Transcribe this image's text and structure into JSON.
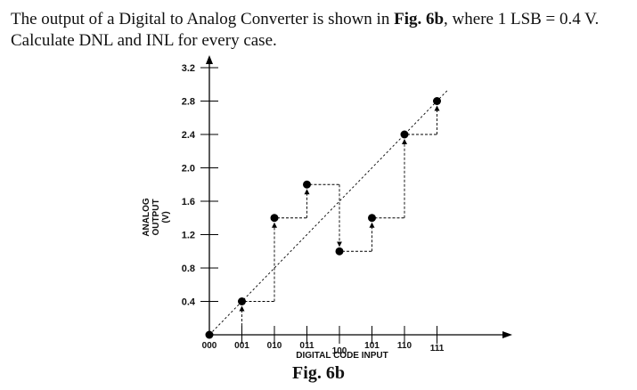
{
  "problem": {
    "part1": "The output of a Digital  to Analog Converter is shown in ",
    "figref": "Fig. 6b",
    "part2": ", where  1 LSB  = 0.4 V. Calculate  DNL and INL for every  case."
  },
  "caption": "Fig. 6b",
  "chart_data": {
    "type": "scatter",
    "title": "",
    "xlabel": "DIGITAL CODE INPUT",
    "ylabel": "ANALOG OUTPUT (V)",
    "ylabel_lines": [
      "ANALOG",
      "OUTPUT",
      "(V)"
    ],
    "categories": [
      "000",
      "001",
      "010",
      "011",
      "100",
      "101",
      "110",
      "111"
    ],
    "y_ticks": [
      "0.4",
      "0.8",
      "1.2",
      "1.6",
      "2.0",
      "2.4",
      "2.8",
      "3.2"
    ],
    "ylim": [
      0,
      3.2
    ],
    "series": [
      {
        "values": [
          0.0,
          0.4,
          1.4,
          1.8,
          1.0,
          1.4,
          2.4,
          2.8
        ]
      }
    ],
    "ideal_line": {
      "x": [
        0,
        7.35
      ],
      "y": [
        0,
        2.94
      ]
    },
    "grid": false,
    "color": "#000000"
  }
}
